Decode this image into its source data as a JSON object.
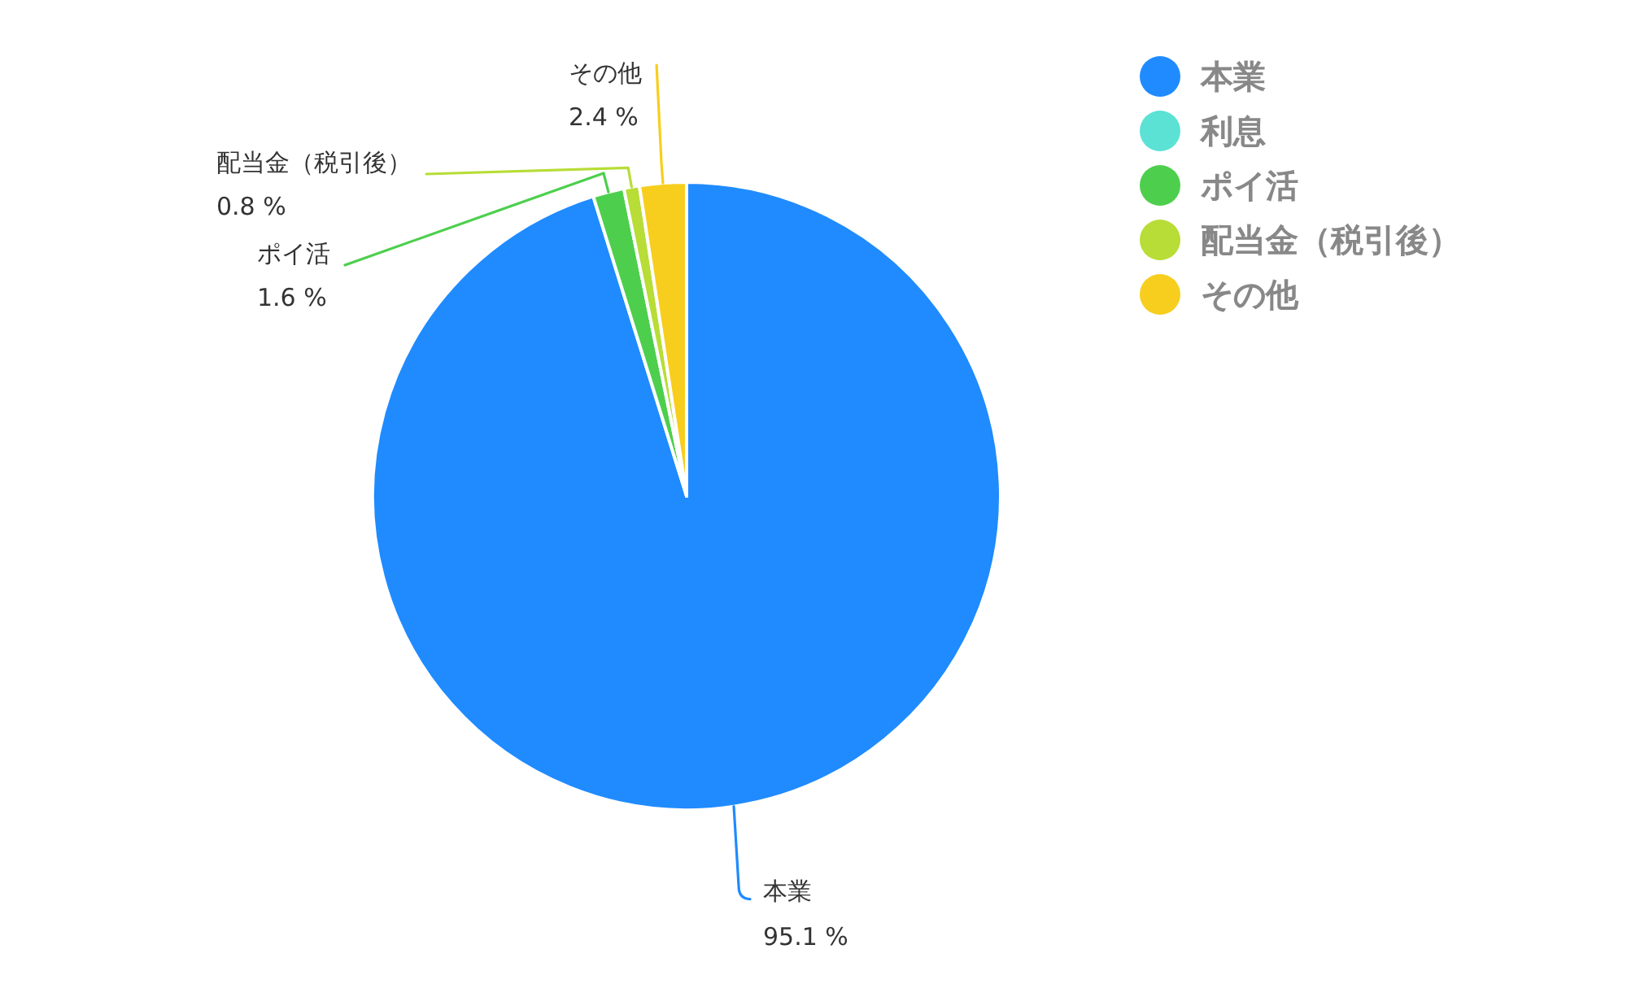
{
  "chart_data": {
    "type": "pie",
    "categories": [
      "本業",
      "利息",
      "ポイ活",
      "配当金（税引後）",
      "その他"
    ],
    "values": [
      95.1,
      0,
      1.6,
      0.8,
      2.4
    ],
    "colors": [
      "#1f8bff",
      "#5be2d5",
      "#4dcf4d",
      "#b7dd36",
      "#f7ce1d"
    ],
    "value_labels": [
      "95.1 %",
      null,
      "1.6 %",
      "0.8 %",
      "2.4 %"
    ],
    "legend": "top right"
  }
}
